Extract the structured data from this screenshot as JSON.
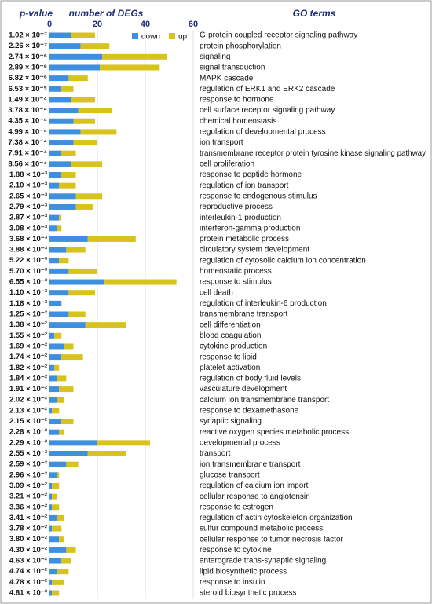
{
  "chart_data": {
    "type": "bar",
    "orientation": "horizontal",
    "stacked": true,
    "p_value_header": "p-value",
    "x_label": "number of DEGs",
    "category_header": "GO terms",
    "xlim": [
      0,
      60
    ],
    "xticks": [
      0,
      20,
      40,
      60
    ],
    "grid": true,
    "legend": "top",
    "p_values": [
      "1.02 × 10⁻⁷",
      "2.26 × 10⁻⁷",
      "2.74 × 10⁻⁶",
      "2.89 × 10⁻⁶",
      "6.82 × 10⁻⁶",
      "6.53 × 10⁻⁵",
      "1.49 × 10⁻⁴",
      "3.78 × 10⁻⁴",
      "4.35 × 10⁻⁴",
      "4.99 × 10⁻⁴",
      "7.38 × 10⁻⁴",
      "7.91 × 10⁻⁴",
      "8.56 × 10⁻⁴",
      "1.88 × 10⁻³",
      "2.10 × 10⁻³",
      "2.65 × 10⁻³",
      "2.79 × 10⁻³",
      "2.87 × 10⁻³",
      "3.08 × 10⁻³",
      "3.68 × 10⁻³",
      "3.88 × 10⁻³",
      "5.22 × 10⁻³",
      "5.70 × 10⁻³",
      "6.55 × 10⁻³",
      "1.10 × 10⁻²",
      "1.18 × 10⁻²",
      "1.25 × 10⁻²",
      "1.38 × 10⁻²",
      "1.55 × 10⁻²",
      "1.69 × 10⁻²",
      "1.74 × 10⁻²",
      "1.82 × 10⁻²",
      "1.84 × 10⁻²",
      "1.91 × 10⁻²",
      "2.02 × 10⁻²",
      "2.13 × 10⁻²",
      "2.15 × 10⁻²",
      "2.28 × 10⁻²",
      "2.29 × 10⁻²",
      "2.55 × 10⁻²",
      "2.59 × 10⁻²",
      "2.96 × 10⁻²",
      "3.09 × 10⁻²",
      "3.21 × 10⁻²",
      "3.36 × 10⁻²",
      "3.41 × 10⁻²",
      "3.78 × 10⁻²",
      "3.80 × 10⁻²",
      "4.30 × 10⁻²",
      "4.63 × 10⁻²",
      "4.74 × 10⁻²",
      "4.78 × 10⁻²",
      "4.81 × 10⁻²"
    ],
    "categories": [
      "G-protein coupled receptor signaling pathway",
      "protein phosphorylation",
      "signaling",
      "signal transduction",
      "MAPK cascade",
      "regulation of ERK1 and ERK2 cascade",
      "response to hormone",
      "cell surface receptor signaling pathway",
      "chemical homeostasis",
      "regulation of developmental process",
      "ion transport",
      "transmembrane receptor protein tyrosine kinase signaling pathway",
      "cell proliferation",
      "response to peptide hormone",
      "regulation of ion transport",
      "response to endogenous stimulus",
      "reproductive process",
      "interleukin-1 production",
      "interferon-gamma production",
      "protein metabolic process",
      "circulatory system development",
      "regulation of cytosolic calcium ion concentration",
      "homeostatic process",
      "response to stimulus",
      "cell death",
      "regulation of interleukin-6 production",
      "transmembrane transport",
      "cell differentiation",
      "blood coagulation",
      "cytokine production",
      "response to lipid",
      "platelet activation",
      "regulation of body fluid levels",
      "vasculature development",
      "calcium ion transmembrane transport",
      "response to dexamethasone",
      "synaptic signaling",
      "reactive oxygen species metabolic process",
      "developmental process",
      "transport",
      "ion transmembrane transport",
      "glucose transport",
      "regulation of calcium ion import",
      "cellular response to angiotensin",
      "response to estrogen",
      "regulation of actin cytoskeleton organization",
      "sulfur compound metabolic process",
      "cellular response to tumor necrosis factor",
      "response to cytokine",
      "anterograde trans-synaptic signaling",
      "lipid biosynthetic process",
      "response to insulin",
      "steroid biosynthetic process"
    ],
    "series": [
      {
        "name": "down",
        "color": "#3f8fe0",
        "values": [
          9,
          13,
          22,
          21,
          8,
          5,
          9,
          12,
          10,
          13,
          10,
          5,
          9,
          5,
          4,
          11,
          11,
          4,
          3,
          16,
          7,
          4,
          8,
          23,
          8,
          5,
          8,
          15,
          2,
          6,
          5,
          2,
          3,
          4,
          3,
          1,
          5,
          4,
          20,
          16,
          7,
          3,
          1,
          1,
          1,
          3,
          1,
          4,
          7,
          5,
          3,
          1,
          1
        ]
      },
      {
        "name": "up",
        "color": "#d8c31c",
        "values": [
          10,
          12,
          27,
          25,
          8,
          5,
          10,
          14,
          9,
          15,
          10,
          6,
          13,
          6,
          7,
          11,
          7,
          1,
          2,
          20,
          8,
          4,
          12,
          30,
          11,
          0,
          7,
          17,
          3,
          4,
          9,
          2,
          4,
          6,
          3,
          3,
          5,
          2,
          22,
          16,
          5,
          1,
          3,
          2,
          3,
          3,
          4,
          2,
          4,
          4,
          5,
          5,
          3
        ]
      }
    ]
  }
}
